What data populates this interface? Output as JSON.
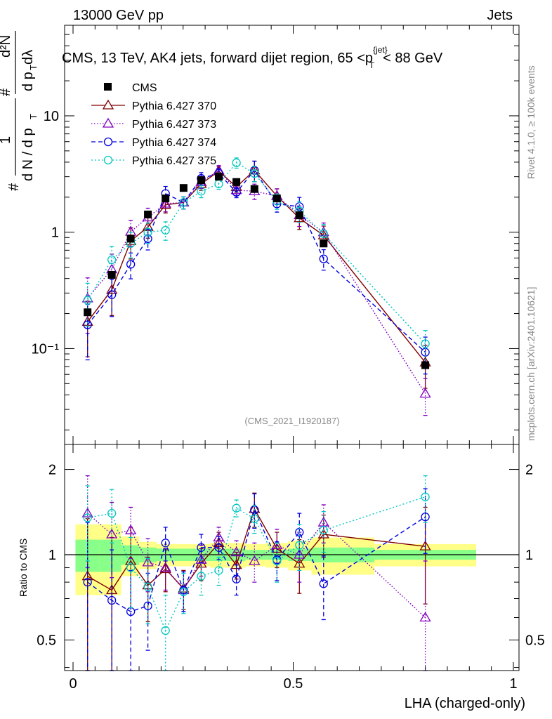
{
  "header": {
    "energy": "13000 GeV pp",
    "category": "Jets"
  },
  "side": {
    "rivet": "Rivet 4.1.0, ≥ 100k events",
    "source": "mcplots.cern.ch [arXiv:2401.10621]"
  },
  "chart_data": {
    "type": "line",
    "title_prefix": "CMS, 13 TeV, AK4 jets, forward dijet region, 65 <",
    "title_pt": "p",
    "title_pt_sub": "T",
    "title_pt_sup": "{jet}",
    "title_suffix": "< 88 GeV",
    "analysis_tag": "(CMS_2021_I1920187)",
    "xlabel": "LHA (charged-only)",
    "ylabel_main": "1/(dN/dpT) d²N/(dpT dλ)",
    "ylabel_ratio": "Ratio to CMS",
    "xlim": [
      0,
      1
    ],
    "ylim_main": [
      0.015,
      60
    ],
    "ylim_ratio": [
      0.39,
      2.45
    ],
    "x_ticks": [
      "0",
      "0.5",
      "1"
    ],
    "y_ticks_main": [
      "10",
      "1",
      "10⁻¹"
    ],
    "y_ticks_ratio": [
      "2",
      "1",
      "0.5"
    ],
    "x": [
      0.033,
      0.088,
      0.131,
      0.17,
      0.21,
      0.251,
      0.291,
      0.331,
      0.371,
      0.412,
      0.463,
      0.514,
      0.569,
      0.8
    ],
    "reference": {
      "name": "CMS",
      "values": [
        0.205,
        0.43,
        0.88,
        1.42,
        1.95,
        2.4,
        2.8,
        3.0,
        2.7,
        2.35,
        1.95,
        1.4,
        0.8,
        0.072
      ],
      "ratio_band_inner": [
        0.13,
        0.13,
        0.08,
        0.06,
        0.05,
        0.05,
        0.05,
        0.05,
        0.05,
        0.04,
        0.04,
        0.05,
        0.06,
        0.04
      ],
      "ratio_band_outer": [
        0.28,
        0.28,
        0.16,
        0.11,
        0.09,
        0.09,
        0.09,
        0.1,
        0.1,
        0.09,
        0.1,
        0.12,
        0.15,
        0.09
      ]
    },
    "series": [
      {
        "name": "Pythia 6.427 370",
        "color": "#800000",
        "dash": "",
        "marker": "triangle",
        "values": [
          0.17,
          0.32,
          0.84,
          1.11,
          1.72,
          1.8,
          2.6,
          3.35,
          2.45,
          3.4,
          2.05,
          1.32,
          0.94,
          0.076
        ],
        "ratio": [
          0.84,
          0.75,
          0.95,
          0.78,
          0.89,
          0.76,
          0.93,
          1.1,
          0.92,
          1.45,
          1.05,
          0.93,
          1.18,
          1.07
        ],
        "ratio_err": [
          0.5,
          0.4,
          0.3,
          0.2,
          0.15,
          0.12,
          0.12,
          0.1,
          0.1,
          0.2,
          0.15,
          0.2,
          0.2,
          0.4
        ]
      },
      {
        "name": "Pythia 6.427 373",
        "color": "#8000c0",
        "dash": "1.5,2.5",
        "marker": "triangle",
        "values": [
          0.27,
          0.48,
          1.01,
          1.34,
          1.76,
          1.8,
          2.7,
          3.4,
          2.3,
          2.25,
          2.05,
          1.4,
          1.0,
          0.041
        ],
        "ratio": [
          1.4,
          1.18,
          1.22,
          0.94,
          0.9,
          0.75,
          0.96,
          1.15,
          1.02,
          0.95,
          1.08,
          1.0,
          1.3,
          0.6
        ],
        "ratio_err": [
          0.5,
          0.35,
          0.25,
          0.2,
          0.15,
          0.12,
          0.12,
          0.1,
          0.1,
          0.15,
          0.15,
          0.2,
          0.2,
          0.35
        ]
      },
      {
        "name": "Pythia 6.427 374",
        "color": "#0000e0",
        "dash": "6,4",
        "marker": "circle",
        "values": [
          0.16,
          0.29,
          0.53,
          0.88,
          2.15,
          1.8,
          2.9,
          3.2,
          2.2,
          3.4,
          1.75,
          1.66,
          0.59,
          0.093
        ],
        "ratio": [
          0.8,
          0.69,
          0.63,
          0.66,
          1.1,
          0.75,
          1.06,
          1.06,
          0.82,
          1.44,
          0.96,
          1.2,
          0.79,
          1.36
        ],
        "ratio_err": [
          0.5,
          0.35,
          0.25,
          0.2,
          0.15,
          0.12,
          0.12,
          0.1,
          0.1,
          0.2,
          0.15,
          0.2,
          0.2,
          0.35
        ]
      },
      {
        "name": "Pythia 6.427 375",
        "color": "#00c8c0",
        "dash": "2,3",
        "marker": "circle",
        "values": [
          0.26,
          0.58,
          0.8,
          1.0,
          1.04,
          1.8,
          2.25,
          2.6,
          3.95,
          3.2,
          1.85,
          1.52,
          0.97,
          0.11
        ],
        "ratio": [
          1.35,
          1.4,
          0.9,
          0.77,
          0.54,
          0.74,
          0.84,
          0.88,
          1.46,
          1.34,
          0.95,
          1.08,
          1.22,
          1.6
        ],
        "ratio_err": [
          0.4,
          0.3,
          0.25,
          0.2,
          0.18,
          0.12,
          0.12,
          0.1,
          0.1,
          0.15,
          0.15,
          0.2,
          0.2,
          0.3
        ]
      }
    ]
  }
}
